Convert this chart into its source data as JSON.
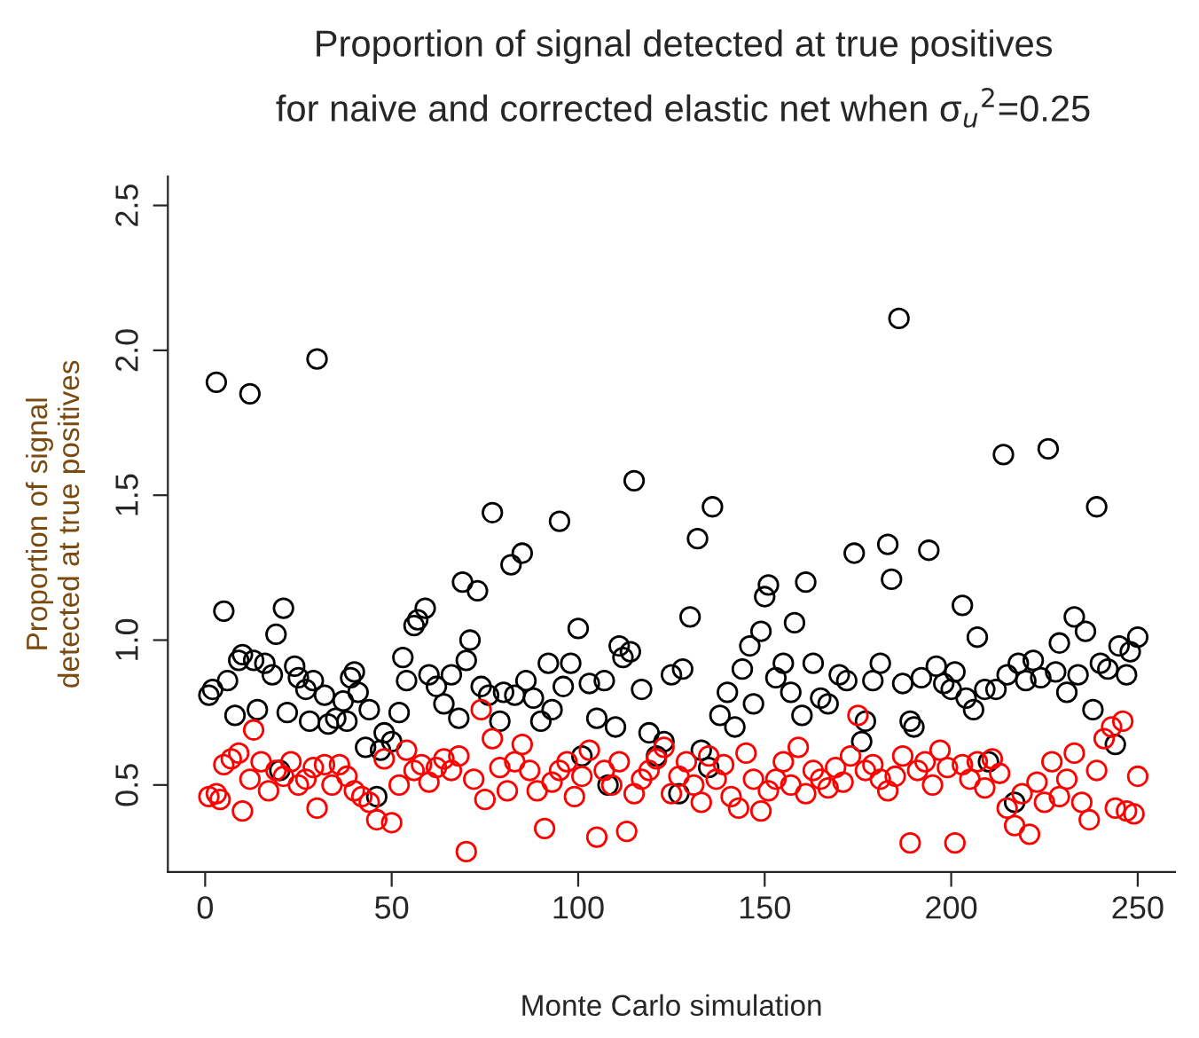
{
  "chart_data": {
    "type": "scatter",
    "title": "Proportion of signal detected at true positives",
    "subtitle": "for naive and corrected elastic net when σ$_{u}$$^{2}$=0.25",
    "xlabel": "Monte Carlo simulation",
    "ylabel": "Proportion of signal\ndetected at true positives",
    "marker": "circle",
    "grid": false,
    "legend": false,
    "xlim": [
      -10,
      260
    ],
    "ylim": [
      0.2,
      2.6
    ],
    "xticks": [
      0,
      50,
      100,
      150,
      200,
      250
    ],
    "yticks": [
      0.5,
      {
        "value": 1,
        "label": "1.0"
      },
      1.5,
      {
        "value": 2,
        "label": "2.0"
      },
      2.5
    ],
    "series": [
      {
        "color": "#000000",
        "x": [
          1,
          2,
          3,
          5,
          6,
          8,
          9,
          10,
          12,
          13,
          14,
          16,
          18,
          19,
          20,
          21,
          22,
          24,
          25,
          27,
          28,
          29,
          30,
          32,
          33,
          35,
          37,
          38,
          39,
          40,
          41,
          43,
          44,
          46,
          47,
          48,
          50,
          52,
          53,
          54,
          56,
          57,
          59,
          60,
          62,
          64,
          66,
          68,
          69,
          70,
          71,
          73,
          74,
          76,
          77,
          79,
          80,
          82,
          83,
          85,
          86,
          88,
          90,
          92,
          93,
          95,
          96,
          98,
          100,
          101,
          103,
          105,
          107,
          108,
          110,
          111,
          112,
          114,
          115,
          117,
          119,
          121,
          123,
          125,
          127,
          128,
          130,
          132,
          133,
          135,
          136,
          138,
          140,
          142,
          144,
          146,
          147,
          149,
          150,
          151,
          153,
          155,
          157,
          158,
          160,
          161,
          163,
          165,
          167,
          170,
          172,
          174,
          176,
          177,
          179,
          181,
          183,
          184,
          186,
          187,
          189,
          190,
          192,
          194,
          196,
          198,
          200,
          201,
          203,
          204,
          206,
          207,
          209,
          210,
          212,
          214,
          215,
          217,
          218,
          220,
          222,
          224,
          226,
          228,
          229,
          231,
          233,
          234,
          236,
          238,
          239,
          240,
          242,
          244,
          245,
          247,
          248,
          250
        ],
        "values": [
          0.81,
          0.83,
          1.89,
          1.1,
          0.86,
          0.74,
          0.93,
          0.95,
          1.85,
          0.93,
          0.76,
          0.92,
          0.88,
          1.02,
          0.55,
          1.11,
          0.75,
          0.91,
          0.87,
          0.83,
          0.72,
          0.86,
          1.97,
          0.81,
          0.71,
          0.73,
          0.79,
          0.72,
          0.87,
          0.89,
          0.82,
          0.63,
          0.76,
          0.46,
          0.62,
          0.68,
          0.65,
          0.75,
          0.94,
          0.86,
          1.05,
          1.07,
          1.11,
          0.88,
          0.84,
          0.78,
          0.88,
          0.73,
          1.2,
          0.93,
          1.0,
          1.17,
          0.84,
          0.81,
          1.44,
          0.72,
          0.82,
          1.26,
          0.81,
          1.3,
          0.86,
          0.8,
          0.72,
          0.92,
          0.76,
          1.41,
          0.84,
          0.92,
          1.04,
          0.6,
          0.85,
          0.73,
          0.86,
          0.5,
          0.7,
          0.98,
          0.94,
          0.96,
          1.55,
          0.83,
          0.68,
          0.6,
          0.65,
          0.88,
          0.47,
          0.9,
          1.08,
          1.35,
          0.62,
          0.56,
          1.46,
          0.74,
          0.82,
          0.7,
          0.9,
          0.98,
          0.78,
          1.03,
          1.15,
          1.19,
          0.87,
          0.92,
          0.82,
          1.06,
          0.74,
          1.2,
          0.92,
          0.8,
          0.78,
          0.88,
          0.86,
          1.3,
          0.65,
          0.72,
          0.86,
          0.92,
          1.33,
          1.21,
          2.11,
          0.85,
          0.72,
          0.7,
          0.87,
          1.31,
          0.91,
          0.85,
          0.83,
          0.89,
          1.12,
          0.8,
          0.76,
          1.01,
          0.83,
          0.58,
          0.83,
          1.64,
          0.88,
          0.44,
          0.92,
          0.86,
          0.93,
          0.87,
          1.66,
          0.89,
          0.99,
          0.82,
          1.08,
          0.88,
          1.03,
          0.76,
          1.46,
          0.92,
          0.9,
          0.64,
          0.98,
          0.88,
          0.96,
          1.01
        ]
      },
      {
        "color": "#ff0000",
        "x": [
          1,
          3,
          4,
          5,
          7,
          9,
          10,
          12,
          13,
          15,
          17,
          19,
          21,
          23,
          25,
          27,
          29,
          30,
          32,
          34,
          36,
          38,
          40,
          42,
          44,
          46,
          48,
          50,
          52,
          54,
          56,
          58,
          60,
          62,
          64,
          66,
          68,
          70,
          72,
          74,
          75,
          77,
          79,
          81,
          83,
          85,
          87,
          89,
          91,
          93,
          95,
          97,
          99,
          101,
          103,
          105,
          107,
          109,
          111,
          113,
          115,
          117,
          119,
          121,
          123,
          125,
          127,
          129,
          131,
          133,
          135,
          137,
          139,
          141,
          143,
          145,
          147,
          149,
          151,
          153,
          155,
          157,
          159,
          161,
          163,
          165,
          167,
          169,
          171,
          173,
          175,
          177,
          179,
          181,
          183,
          185,
          187,
          189,
          191,
          193,
          195,
          197,
          199,
          201,
          203,
          205,
          207,
          209,
          211,
          213,
          215,
          217,
          219,
          221,
          223,
          225,
          227,
          229,
          231,
          233,
          235,
          237,
          239,
          241,
          243,
          244,
          246,
          247,
          249,
          250
        ],
        "values": [
          0.46,
          0.47,
          0.45,
          0.57,
          0.59,
          0.61,
          0.41,
          0.52,
          0.69,
          0.58,
          0.48,
          0.55,
          0.53,
          0.58,
          0.5,
          0.52,
          0.56,
          0.42,
          0.57,
          0.5,
          0.57,
          0.53,
          0.48,
          0.46,
          0.44,
          0.38,
          0.59,
          0.37,
          0.5,
          0.62,
          0.55,
          0.57,
          0.51,
          0.56,
          0.59,
          0.55,
          0.6,
          0.27,
          0.52,
          0.76,
          0.45,
          0.66,
          0.56,
          0.48,
          0.58,
          0.64,
          0.55,
          0.48,
          0.35,
          0.51,
          0.55,
          0.58,
          0.46,
          0.53,
          0.62,
          0.32,
          0.55,
          0.5,
          0.58,
          0.34,
          0.47,
          0.52,
          0.55,
          0.59,
          0.63,
          0.47,
          0.53,
          0.58,
          0.5,
          0.44,
          0.6,
          0.52,
          0.57,
          0.46,
          0.42,
          0.61,
          0.52,
          0.41,
          0.48,
          0.52,
          0.58,
          0.5,
          0.63,
          0.47,
          0.55,
          0.52,
          0.49,
          0.56,
          0.51,
          0.6,
          0.74,
          0.55,
          0.57,
          0.52,
          0.48,
          0.53,
          0.6,
          0.3,
          0.55,
          0.58,
          0.5,
          0.62,
          0.56,
          0.3,
          0.57,
          0.52,
          0.58,
          0.49,
          0.59,
          0.54,
          0.42,
          0.36,
          0.47,
          0.33,
          0.51,
          0.44,
          0.58,
          0.46,
          0.52,
          0.61,
          0.44,
          0.38,
          0.55,
          0.66,
          0.7,
          0.42,
          0.72,
          0.41,
          0.4,
          0.53
        ]
      }
    ]
  }
}
